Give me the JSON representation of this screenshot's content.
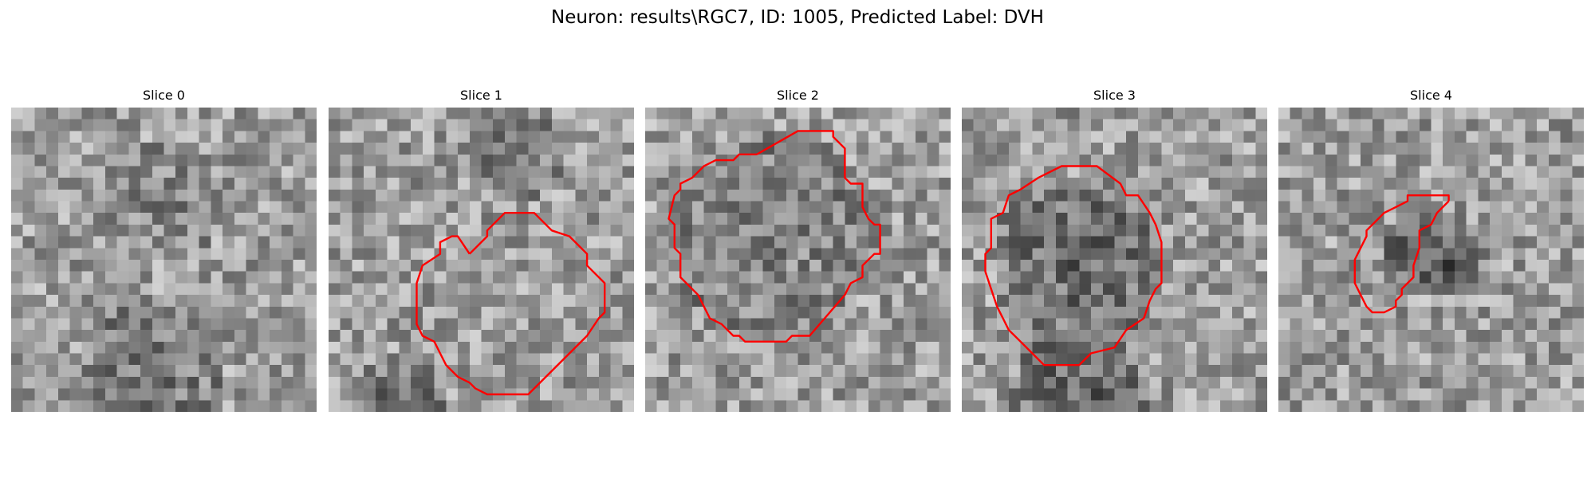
{
  "figure": {
    "title": "Neuron: results\\RGC7, ID: 1005, Predicted Label: DVH",
    "contour_color": "#ff0000"
  },
  "panels": [
    {
      "title": "Slice 0",
      "image_seed": 11,
      "contour": []
    },
    {
      "title": "Slice 1",
      "image_seed": 23,
      "contour": [
        [
          12,
          12.5
        ],
        [
          13.5,
          11
        ],
        [
          13.5,
          10.5
        ],
        [
          15,
          9
        ],
        [
          17.5,
          9
        ],
        [
          19,
          10.5
        ],
        [
          20.5,
          11
        ],
        [
          22,
          12.5
        ],
        [
          22,
          13.5
        ],
        [
          23.5,
          15
        ],
        [
          23.5,
          17.5
        ],
        [
          23,
          18
        ],
        [
          22,
          19.5
        ],
        [
          19,
          22.5
        ],
        [
          17,
          24.5
        ],
        [
          13.5,
          24.5
        ],
        [
          12.5,
          24
        ],
        [
          12,
          23.5
        ],
        [
          11,
          23
        ],
        [
          10,
          22
        ],
        [
          9.5,
          21
        ],
        [
          9,
          20
        ],
        [
          8,
          19.5
        ],
        [
          7.5,
          18.5
        ],
        [
          7.5,
          15
        ],
        [
          8,
          13.5
        ],
        [
          9.5,
          12.5
        ],
        [
          9.5,
          11.5
        ],
        [
          10.5,
          11
        ],
        [
          11,
          11
        ],
        [
          12,
          12.5
        ]
      ]
    },
    {
      "title": "Slice 2",
      "image_seed": 37,
      "contour": [
        [
          9.5,
          4
        ],
        [
          13,
          2
        ],
        [
          16,
          2
        ],
        [
          16,
          2.5
        ],
        [
          17,
          3.5
        ],
        [
          17,
          6
        ],
        [
          17.5,
          6.5
        ],
        [
          18.5,
          6.5
        ],
        [
          18.5,
          8.5
        ],
        [
          19,
          9.5
        ],
        [
          19.5,
          10
        ],
        [
          20,
          10
        ],
        [
          20,
          12.5
        ],
        [
          19.5,
          12.5
        ],
        [
          18.5,
          13.5
        ],
        [
          18.5,
          14.5
        ],
        [
          17.5,
          15
        ],
        [
          17,
          16
        ],
        [
          14,
          19.5
        ],
        [
          12.5,
          19.5
        ],
        [
          12,
          20
        ],
        [
          8.5,
          20
        ],
        [
          8,
          19.5
        ],
        [
          7.5,
          19.5
        ],
        [
          6.5,
          18.5
        ],
        [
          5.5,
          18
        ],
        [
          5,
          17
        ],
        [
          4.5,
          16
        ],
        [
          4,
          15.5
        ],
        [
          3,
          14.5
        ],
        [
          3,
          12.5
        ],
        [
          2.5,
          12
        ],
        [
          2.5,
          10
        ],
        [
          2,
          9.5
        ],
        [
          2.5,
          7.5
        ],
        [
          3,
          7
        ],
        [
          3,
          6.5
        ],
        [
          4,
          6
        ],
        [
          5,
          5
        ],
        [
          6,
          4.5
        ],
        [
          7.5,
          4.5
        ],
        [
          8,
          4
        ],
        [
          9.5,
          4
        ]
      ]
    },
    {
      "title": "Slice 3",
      "image_seed": 41,
      "contour": [
        [
          10,
          5
        ],
        [
          11.5,
          5
        ],
        [
          13.5,
          6.5
        ],
        [
          14,
          7.5
        ],
        [
          15,
          7.5
        ],
        [
          16,
          9
        ],
        [
          16.5,
          10
        ],
        [
          17,
          11.5
        ],
        [
          17,
          15
        ],
        [
          16.5,
          15.5
        ],
        [
          16,
          16.5
        ],
        [
          15.5,
          18
        ],
        [
          14,
          19
        ],
        [
          13,
          20.5
        ],
        [
          11,
          21
        ],
        [
          10,
          22
        ],
        [
          7,
          22
        ],
        [
          6,
          21
        ],
        [
          5,
          20
        ],
        [
          4,
          19
        ],
        [
          3.5,
          18
        ],
        [
          3,
          17
        ],
        [
          2.5,
          15.5
        ],
        [
          2,
          14
        ],
        [
          2,
          12.5
        ],
        [
          2.5,
          12
        ],
        [
          2.5,
          9.5
        ],
        [
          3.5,
          9
        ],
        [
          4,
          7.5
        ],
        [
          5,
          7
        ],
        [
          6.5,
          6
        ],
        [
          8.5,
          5
        ],
        [
          10,
          5
        ]
      ]
    },
    {
      "title": "Slice 4",
      "image_seed": 53,
      "contour": [
        [
          14.5,
          8
        ],
        [
          14,
          8.5
        ],
        [
          13.5,
          9
        ],
        [
          13,
          10
        ],
        [
          12,
          10.5
        ],
        [
          12,
          12
        ],
        [
          11.5,
          13.5
        ],
        [
          11.5,
          14.5
        ],
        [
          11,
          15
        ],
        [
          10.5,
          15.5
        ],
        [
          10.5,
          16
        ],
        [
          10,
          16.5
        ],
        [
          10,
          17
        ],
        [
          9,
          17.5
        ],
        [
          8,
          17.5
        ],
        [
          7.5,
          17
        ],
        [
          7,
          16
        ],
        [
          6.5,
          15
        ],
        [
          6.5,
          13
        ],
        [
          7,
          12
        ],
        [
          7.5,
          11
        ],
        [
          7.5,
          10.5
        ],
        [
          8.5,
          9.5
        ],
        [
          9,
          9
        ],
        [
          10,
          8.5
        ],
        [
          11,
          8
        ],
        [
          11,
          7.5
        ],
        [
          14.5,
          7.5
        ],
        [
          14.5,
          8
        ]
      ]
    }
  ]
}
